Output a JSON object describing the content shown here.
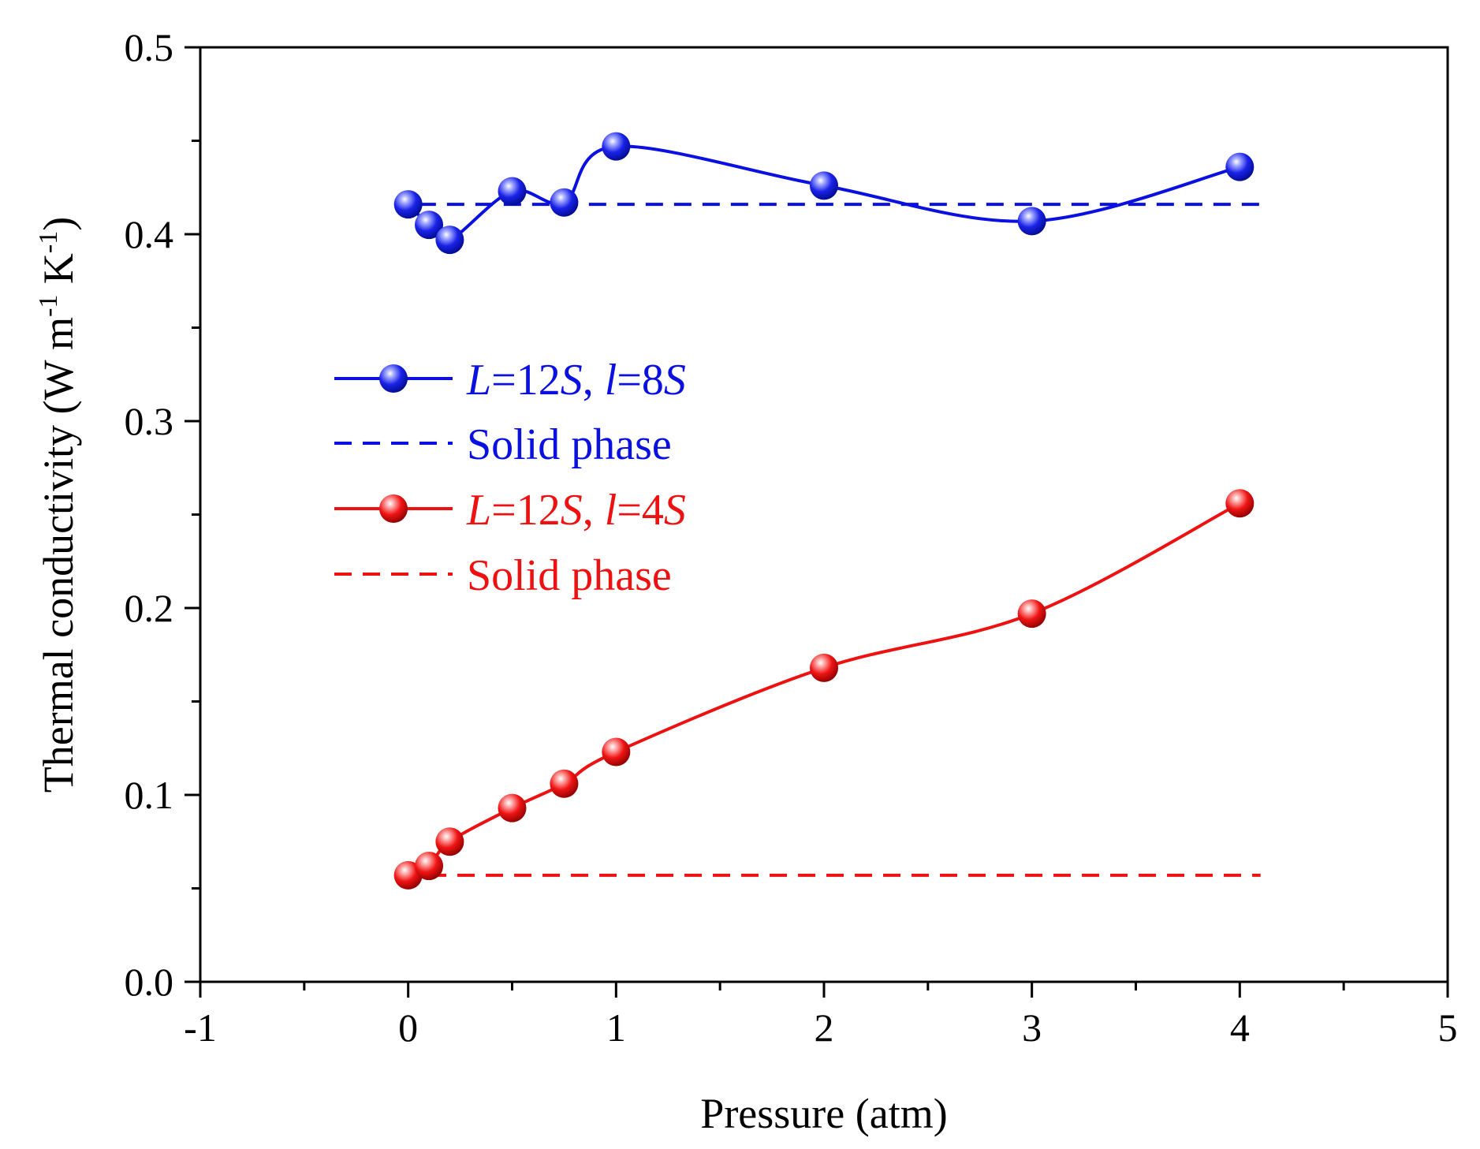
{
  "chart_data": {
    "type": "line",
    "xlabel": "Pressure (atm)",
    "ylabel": {
      "base": "Thermal conductivity (W m",
      "exp1": "-1",
      "mid": " K",
      "exp2": "-1",
      "end": ")"
    },
    "xlim": [
      -1,
      5
    ],
    "ylim": [
      0,
      0.5
    ],
    "x_ticks": [
      -1,
      0,
      1,
      2,
      3,
      4,
      5
    ],
    "x_tick_labels": [
      "-1",
      "0",
      "1",
      "2",
      "3",
      "4",
      "5"
    ],
    "y_ticks": [
      0,
      0.1,
      0.2,
      0.3,
      0.4,
      0.5
    ],
    "y_tick_labels": [
      "0.0",
      "0.1",
      "0.2",
      "0.3",
      "0.4",
      "0.5"
    ],
    "grid": false,
    "legend_position": "left-middle",
    "series": [
      {
        "name": "L=12S, l=8S",
        "label_parts": [
          "L",
          "=12",
          "S",
          ", ",
          "l",
          "=8",
          "S"
        ],
        "color": "#0a10e0",
        "style": "solid-spline-markers",
        "x": [
          0,
          0.1,
          0.2,
          0.5,
          0.75,
          1,
          2,
          3,
          4
        ],
        "y": [
          0.416,
          0.405,
          0.397,
          0.423,
          0.417,
          0.447,
          0.426,
          0.407,
          0.436
        ]
      },
      {
        "name": "Solid phase",
        "color": "#0a10e0",
        "style": "dashed",
        "x": [
          0.05,
          4.1
        ],
        "y": [
          0.416,
          0.416
        ]
      },
      {
        "name": "L=12S, l=4S",
        "label_parts": [
          "L",
          "=12",
          "S",
          ", ",
          "l",
          "=4",
          "S"
        ],
        "color": "#ee1111",
        "style": "solid-spline-markers",
        "x": [
          0,
          0.1,
          0.2,
          0.5,
          0.75,
          1,
          2,
          3,
          4
        ],
        "y": [
          0.057,
          0.062,
          0.075,
          0.093,
          0.106,
          0.123,
          0.168,
          0.197,
          0.256
        ]
      },
      {
        "name": "Solid phase",
        "color": "#ee1111",
        "style": "dashed",
        "x": [
          0.1,
          4.1
        ],
        "y": [
          0.057,
          0.057
        ]
      }
    ]
  }
}
